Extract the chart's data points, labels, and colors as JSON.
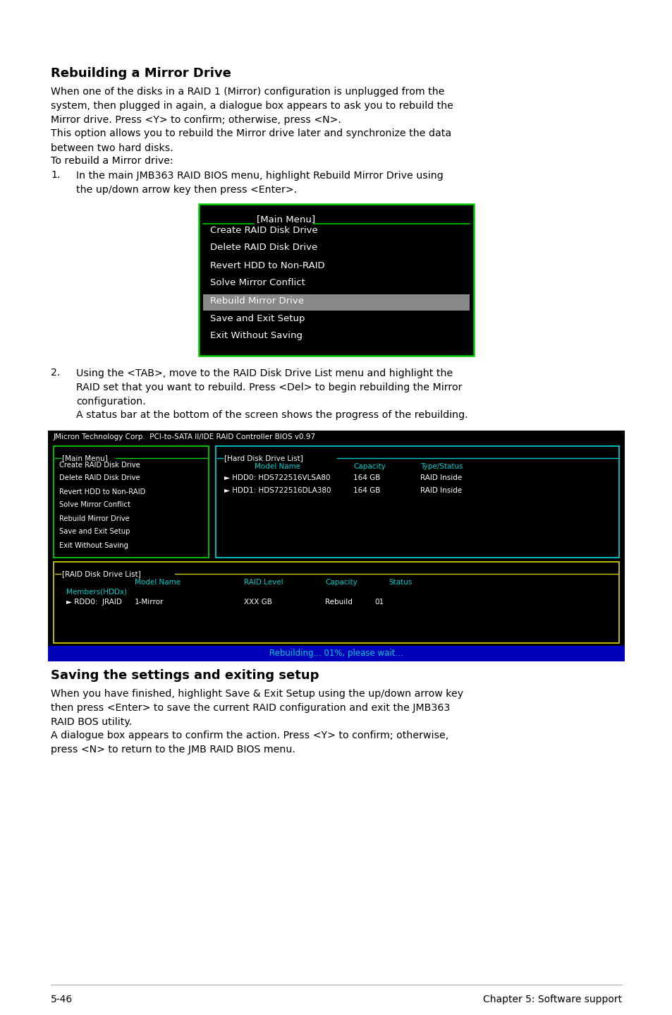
{
  "bg_color": "#ffffff",
  "section1_title": "Rebuilding a Mirror Drive",
  "section1_para1": "When one of the disks in a RAID 1 (Mirror) configuration is unplugged from the\nsystem, then plugged in again, a dialogue box appears to ask you to rebuild the\nMirror drive. Press <Y> to confirm; otherwise, press <N>.",
  "section1_para2": "This option allows you to rebuild the Mirror drive later and synchronize the data\nbetween two hard disks.",
  "section1_para3": "To rebuild a Mirror drive:",
  "step1_text": "In the main JMB363 RAID BIOS menu, highlight Rebuild Mirror Drive using\nthe up/down arrow key then press <Enter>.",
  "menu1_items": [
    "Create RAID Disk Drive",
    "Delete RAID Disk Drive",
    "Revert HDD to Non-RAID",
    "Solve Mirror Conflict",
    "Rebuild Mirror Drive",
    "Save and Exit Setup",
    "Exit Without Saving"
  ],
  "menu1_highlighted": 4,
  "step2_text": "Using the <TAB>, move to the RAID Disk Drive List menu and highlight the\nRAID set that you want to rebuild. Press <Del> to begin rebuilding the Mirror\nconfiguration.",
  "step2_note": "A status bar at the bottom of the screen shows the progress of the rebuilding.",
  "bios_header": "JMicron Technology Corp.  PCI-to-SATA II/IDE RAID Controller BIOS v0.97",
  "left_menu_items": [
    "Create RAID Disk Drive",
    "Delete RAID Disk Drive",
    "Revert HDD to Non-RAID",
    "Solve Mirror Conflict",
    "Rebuild Mirror Drive",
    "Save and Exit Setup",
    "Exit Without Saving"
  ],
  "hdd_col_headers": [
    "Model Name",
    "Capacity",
    "Type/Status"
  ],
  "hdd_entries": [
    [
      "HDD0: HDS722516VLSA80",
      "164 GB",
      "RAID Inside"
    ],
    [
      "HDD1: HDS722516DLA380",
      "164 GB",
      "RAID Inside"
    ]
  ],
  "raid_col_headers": [
    "Model Name",
    "RAID Level",
    "Capacity",
    "Status"
  ],
  "raid_members_label": "Members(HDDx)",
  "raid_entry": [
    "RDD0:  JRAID",
    "1-Mirror",
    "XXX GB",
    "Rebuild",
    "01"
  ],
  "status_bar_text": "Rebuilding... 01%, please wait...",
  "section2_title": "Saving the settings and exiting setup",
  "section2_para1": "When you have finished, highlight Save & Exit Setup using the up/down arrow key\nthen press <Enter> to save the current RAID configuration and exit the JMB363\nRAID BOS utility.",
  "section2_para2": "A dialogue box appears to confirm the action. Press <Y> to confirm; otherwise,\npress <N> to return to the JMB RAID BIOS menu.",
  "footer_left": "5-46",
  "footer_right": "Chapter 5: Software support",
  "cyan": "#00cccc",
  "green": "#00cc00",
  "yellow": "#cccc00",
  "white": "#ffffff",
  "black": "#000000",
  "gray_highlight": "#888888",
  "blue_bar": "#0000bb",
  "dark_bg": "#000000"
}
